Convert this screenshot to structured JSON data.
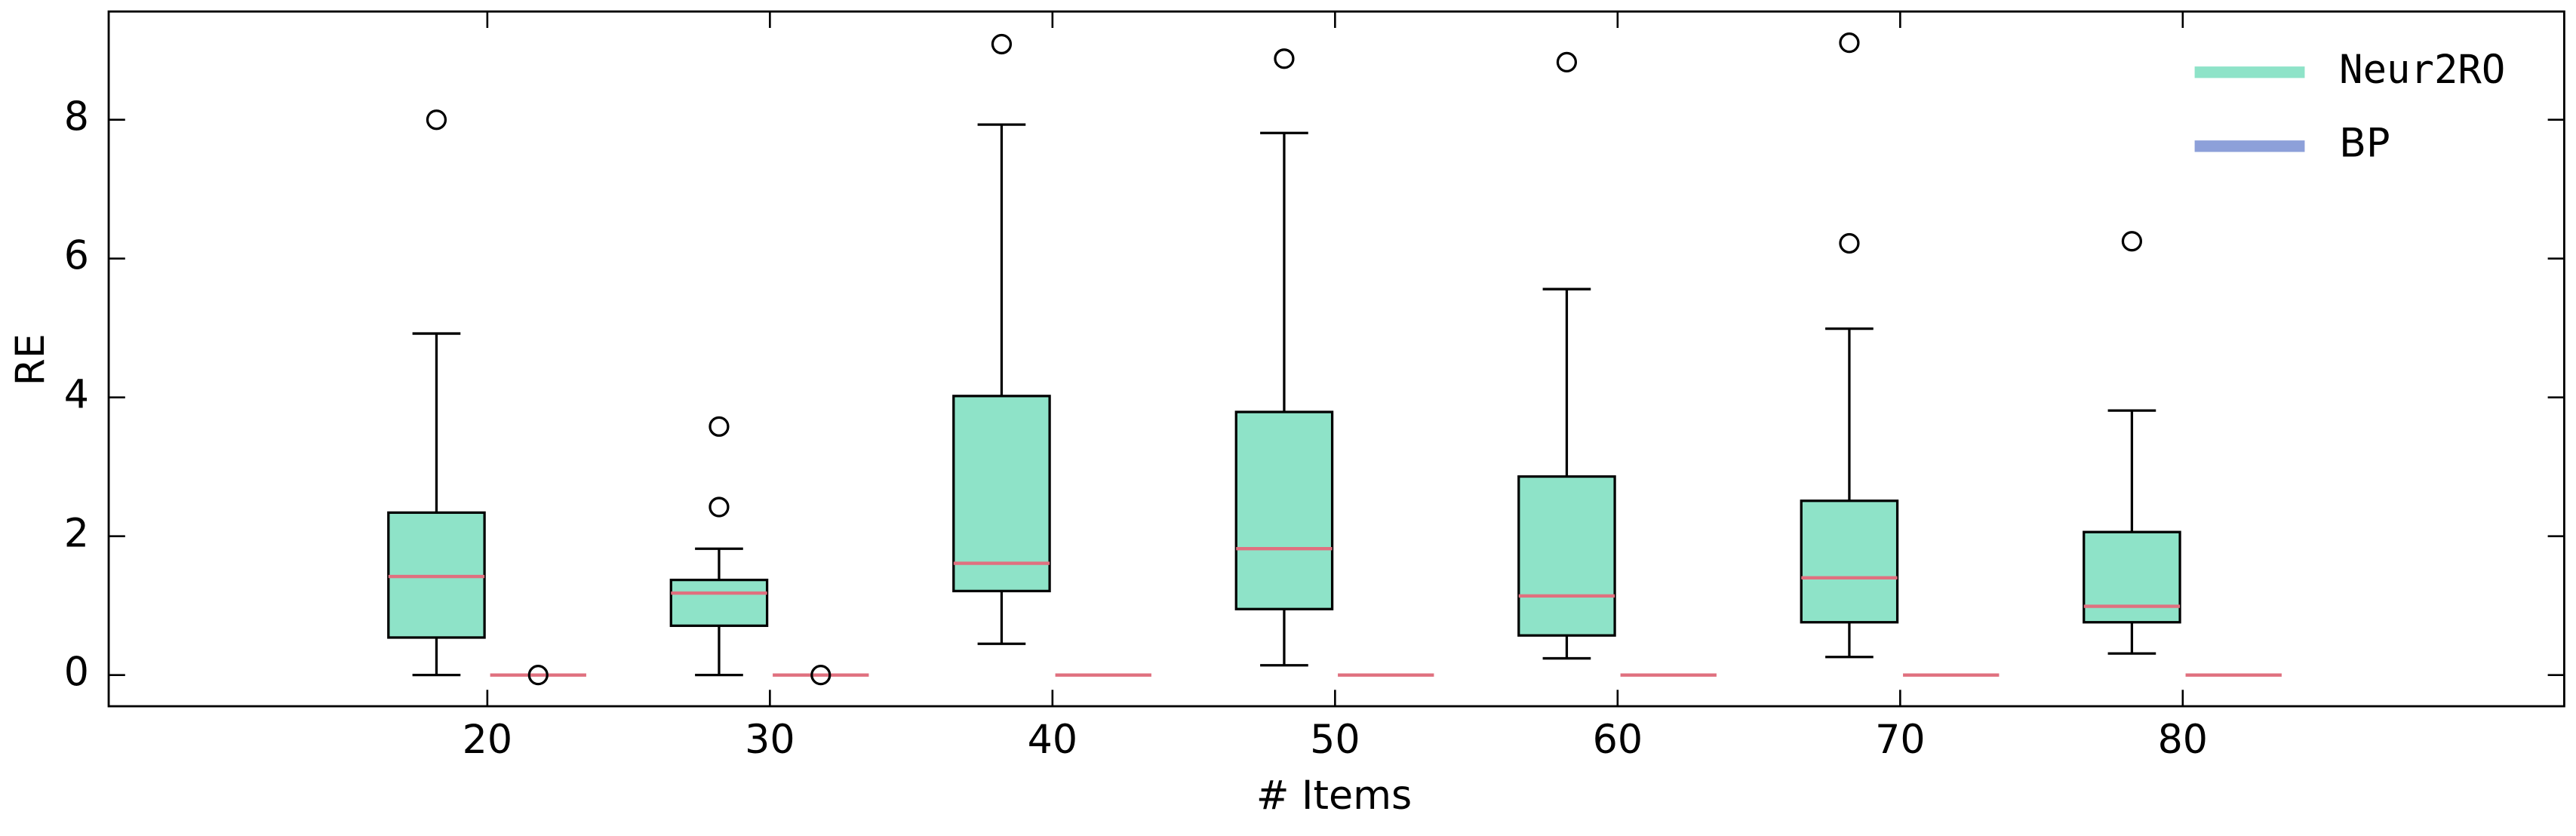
{
  "chart_data": {
    "type": "box",
    "x_label": "# Items",
    "y_label": "RE",
    "categories": [
      20,
      30,
      40,
      50,
      60,
      70,
      80
    ],
    "xlim": [
      6.6,
      93.5
    ],
    "xticks": [
      20,
      30,
      40,
      50,
      60,
      70,
      80
    ],
    "ylim": [
      -0.45,
      9.56
    ],
    "yticks": [
      0,
      2,
      4,
      6,
      8
    ],
    "legend": "upper right",
    "median_color": "#e0707f",
    "series": [
      {
        "name": "Neur2RO",
        "color": "#8ee3c8",
        "boxes": [
          {
            "low": 0,
            "q1": 0.54,
            "median": 1.42,
            "q3": 2.34,
            "high": 4.92,
            "outliers": [
              8.0
            ]
          },
          {
            "low": 0,
            "q1": 0.71,
            "median": 1.18,
            "q3": 1.37,
            "high": 1.82,
            "outliers": [
              2.42,
              3.58
            ]
          },
          {
            "low": 0.45,
            "q1": 1.21,
            "median": 1.61,
            "q3": 4.02,
            "high": 7.93,
            "outliers": [
              9.09
            ]
          },
          {
            "low": 0.14,
            "q1": 0.95,
            "median": 1.82,
            "q3": 3.79,
            "high": 7.81,
            "outliers": [
              8.88
            ]
          },
          {
            "low": 0.24,
            "q1": 0.57,
            "median": 1.14,
            "q3": 2.86,
            "high": 5.56,
            "outliers": [
              8.83
            ]
          },
          {
            "low": 0.26,
            "q1": 0.76,
            "median": 1.4,
            "q3": 2.51,
            "high": 4.99,
            "outliers": [
              6.22,
              9.11
            ]
          },
          {
            "low": 0.31,
            "q1": 0.76,
            "median": 0.99,
            "q3": 2.06,
            "high": 3.81,
            "outliers": [
              6.25
            ]
          }
        ]
      },
      {
        "name": "BP",
        "color": "#8da0d9",
        "boxes": [
          {
            "low": 0,
            "q1": 0,
            "median": 0,
            "q3": 0,
            "high": 0,
            "outliers": [
              0
            ]
          },
          {
            "low": 0,
            "q1": 0,
            "median": 0,
            "q3": 0,
            "high": 0,
            "outliers": [
              0
            ]
          },
          {
            "low": 0,
            "q1": 0,
            "median": 0,
            "q3": 0,
            "high": 0,
            "outliers": []
          },
          {
            "low": 0,
            "q1": 0,
            "median": 0,
            "q3": 0,
            "high": 0,
            "outliers": []
          },
          {
            "low": 0,
            "q1": 0,
            "median": 0,
            "q3": 0,
            "high": 0,
            "outliers": []
          },
          {
            "low": 0,
            "q1": 0,
            "median": 0,
            "q3": 0,
            "high": 0,
            "outliers": []
          },
          {
            "low": 0,
            "q1": 0,
            "median": 0,
            "q3": 0,
            "high": 0,
            "outliers": []
          }
        ]
      }
    ]
  }
}
